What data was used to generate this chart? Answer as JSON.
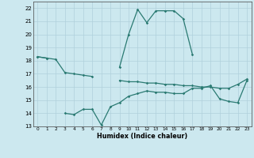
{
  "xlabel": "Humidex (Indice chaleur)",
  "x": [
    0,
    1,
    2,
    3,
    4,
    5,
    6,
    7,
    8,
    9,
    10,
    11,
    12,
    13,
    14,
    15,
    16,
    17,
    18,
    19,
    20,
    21,
    22,
    23
  ],
  "line1": [
    18.3,
    18.2,
    null,
    null,
    null,
    null,
    null,
    null,
    null,
    17.5,
    20.0,
    21.9,
    20.9,
    21.8,
    21.8,
    21.8,
    21.2,
    18.5,
    null,
    null,
    null,
    null,
    null,
    null
  ],
  "line2": [
    18.3,
    18.2,
    18.1,
    17.1,
    17.0,
    16.9,
    16.8,
    null,
    null,
    16.5,
    16.4,
    16.4,
    16.3,
    16.3,
    16.2,
    16.2,
    16.1,
    16.1,
    16.0,
    16.0,
    15.9,
    15.9,
    16.2,
    16.6
  ],
  "line3": [
    null,
    null,
    null,
    14.0,
    13.9,
    14.3,
    14.3,
    13.1,
    14.5,
    14.8,
    15.3,
    15.5,
    15.7,
    15.6,
    15.6,
    15.5,
    15.5,
    15.9,
    15.9,
    16.1,
    15.1,
    14.9,
    14.8,
    16.5
  ],
  "bg_color": "#cce8ef",
  "grid_color": "#b0d0dc",
  "line_color": "#2a7a72",
  "ylim": [
    13,
    22.5
  ],
  "xlim": [
    -0.5,
    23.5
  ],
  "yticks": [
    13,
    14,
    15,
    16,
    17,
    18,
    19,
    20,
    21,
    22
  ],
  "xticks": [
    0,
    1,
    2,
    3,
    4,
    5,
    6,
    7,
    8,
    9,
    10,
    11,
    12,
    13,
    14,
    15,
    16,
    17,
    18,
    19,
    20,
    21,
    22,
    23
  ]
}
